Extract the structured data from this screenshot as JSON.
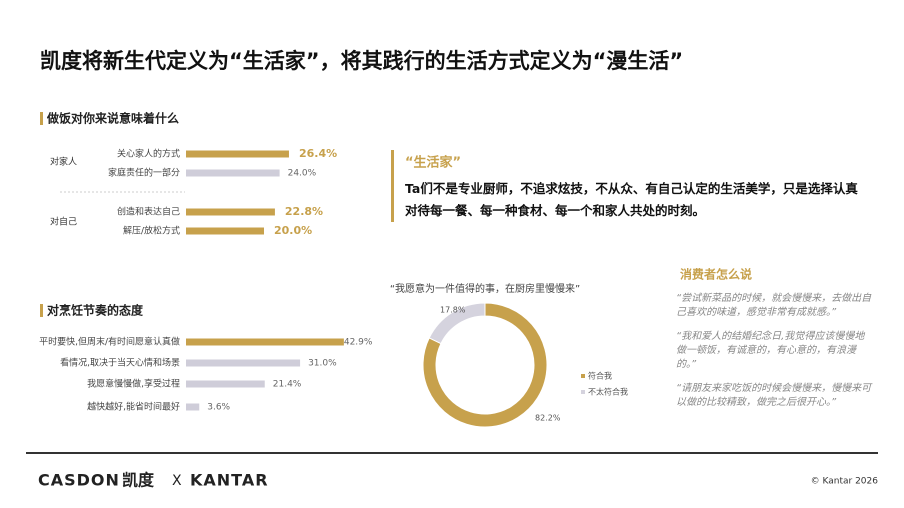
{
  "title": "凯度将新生代定义为“生活家”，将其践行的生活方式定义为“漫生活”",
  "chart_data": [
    {
      "type": "bar",
      "title": "做饭对你来说意味着什么",
      "groups": [
        "对家人",
        "对自己"
      ],
      "categories": [
        "关心家人的方式",
        "家庭责任的一部分",
        "创造和表达自己",
        "解压/放松方式"
      ],
      "values": [
        26.4,
        24.0,
        22.8,
        20.0
      ],
      "value_labels": [
        "26.4%",
        "24.0%",
        "22.8%",
        "20.0%"
      ],
      "colors": [
        "#c7a14c",
        "#cfcdd9",
        "#c7a14c",
        "#c7a14c"
      ]
    },
    {
      "type": "bar",
      "title": "对烹饪节奏的态度",
      "categories": [
        "平时要快,但周末/有时间愿意认真做",
        "看情况,取决于当天心情和场景",
        "我愿意慢慢做,享受过程",
        "越快越好,能省时间最好"
      ],
      "values": [
        42.9,
        31.0,
        21.4,
        3.6
      ],
      "value_labels": [
        "42.9%",
        "31.0%",
        "21.4%",
        "3.6%"
      ],
      "colors": [
        "#c7a14c",
        "#cfcdd9",
        "#cfcdd9",
        "#cfcdd9"
      ]
    },
    {
      "type": "pie",
      "title": "“我愿意为一件值得的事，在厨房里慢慢来”",
      "categories": [
        "符合我",
        "不太符合我"
      ],
      "values": [
        82.2,
        17.8
      ],
      "value_labels": [
        "82.2%",
        "17.8%"
      ],
      "colors": [
        "#c7a14c",
        "#d5d3de"
      ]
    }
  ],
  "quote": {
    "title": "“生活家”",
    "text": "Ta们不是专业厨师，不追求炫技，不从众、有自己认定的生活美学，只是选择认真对待每一餐、每一种食材、每一个和家人共处的时刻。"
  },
  "voices": {
    "title": "消费者怎么说",
    "quotes": [
      "“尝试新菜品的时候，就会慢慢来，去做出自己喜欢的味道，感觉非常有成就感。”",
      "“我和爱人的结婚纪念日,我觉得应该慢慢地做一顿饭，有诚意的，有心意的，有浪漫的。”",
      "“请朋友来家吃饭的时候会慢慢来，慢慢来可以做的比较精致，做完之后很开心。”"
    ]
  },
  "footer": {
    "brand1": "CASDON",
    "brand2": "凯度",
    "cross": "X",
    "brand3": "KANTAR",
    "copyright": "© Kantar 2026"
  }
}
